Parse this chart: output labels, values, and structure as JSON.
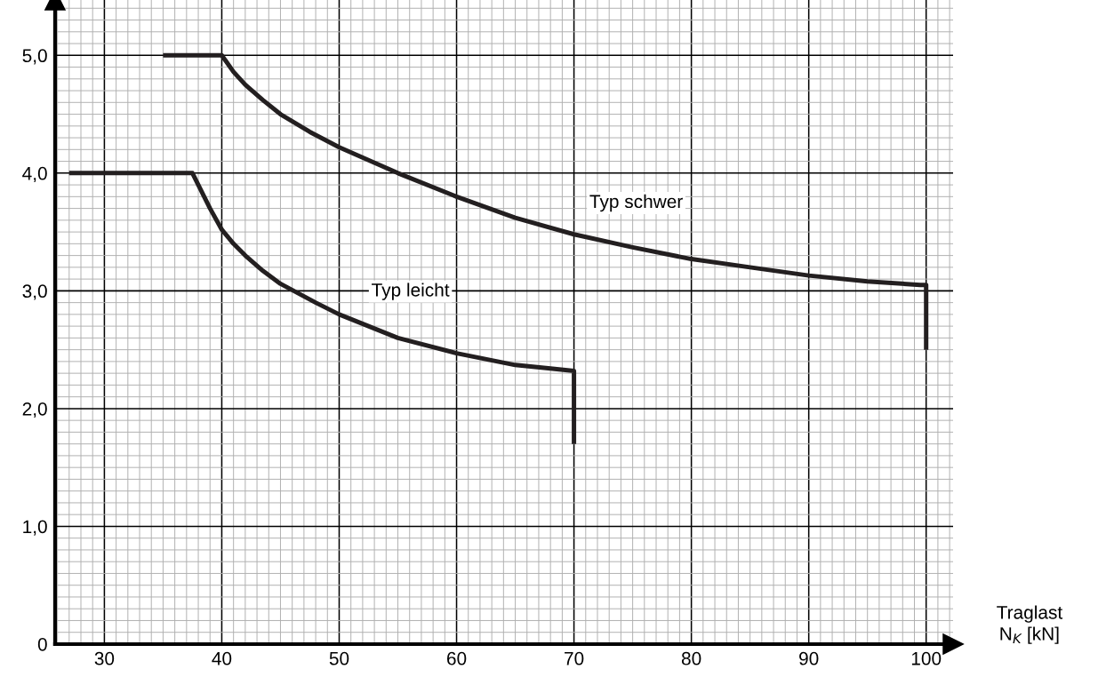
{
  "chart_data": {
    "type": "line",
    "xlabel": "Traglast\nN$_{K}$ [kN]",
    "series": [
      {
        "name": "Typ leicht",
        "color": "#231f20",
        "x": [
          27,
          37.5,
          38,
          38.5,
          39,
          40,
          41,
          42,
          43.5,
          45,
          48,
          50,
          55,
          60,
          65,
          68,
          70,
          70
        ],
        "values": [
          4.0,
          4.0,
          3.9,
          3.8,
          3.7,
          3.52,
          3.4,
          3.3,
          3.17,
          3.06,
          2.9,
          2.8,
          2.6,
          2.47,
          2.37,
          2.34,
          2.32,
          1.7
        ]
      },
      {
        "name": "Typ schwer",
        "color": "#231f20",
        "x": [
          35,
          40,
          41,
          42,
          43.5,
          45,
          47.5,
          50,
          55,
          60,
          65,
          70,
          75,
          80,
          85,
          90,
          95,
          99.5,
          100,
          100
        ],
        "values": [
          5.0,
          5.0,
          4.86,
          4.75,
          4.62,
          4.5,
          4.35,
          4.22,
          4.0,
          3.8,
          3.62,
          3.48,
          3.37,
          3.27,
          3.2,
          3.13,
          3.08,
          3.05,
          3.05,
          2.5
        ]
      }
    ],
    "xlim": [
      25.8,
      102.3
    ],
    "ylim": [
      0,
      5.47
    ],
    "xticks": [
      {
        "value": 26,
        "label": null
      },
      {
        "value": 27,
        "label": null
      },
      {
        "value": 28,
        "label": null
      },
      {
        "value": 29,
        "label": null
      },
      30,
      {
        "value": 31,
        "label": null
      },
      {
        "value": 32,
        "label": null
      },
      {
        "value": 33,
        "label": null
      },
      {
        "value": 34,
        "label": null
      },
      {
        "value": 35,
        "label": null
      },
      {
        "value": 36,
        "label": null
      },
      {
        "value": 37,
        "label": null
      },
      {
        "value": 38,
        "label": null
      },
      {
        "value": 39,
        "label": null
      },
      40,
      {
        "value": 41,
        "label": null
      },
      {
        "value": 42,
        "label": null
      },
      {
        "value": 43,
        "label": null
      },
      {
        "value": 44,
        "label": null
      },
      {
        "value": 45,
        "label": null
      },
      {
        "value": 46,
        "label": null
      },
      {
        "value": 47,
        "label": null
      },
      {
        "value": 48,
        "label": null
      },
      {
        "value": 49,
        "label": null
      },
      50,
      {
        "value": 51,
        "label": null
      },
      {
        "value": 52,
        "label": null
      },
      {
        "value": 53,
        "label": null
      },
      {
        "value": 54,
        "label": null
      },
      {
        "value": 55,
        "label": null
      },
      {
        "value": 56,
        "label": null
      },
      {
        "value": 57,
        "label": null
      },
      {
        "value": 58,
        "label": null
      },
      {
        "value": 59,
        "label": null
      },
      60,
      {
        "value": 61,
        "label": null
      },
      {
        "value": 62,
        "label": null
      },
      {
        "value": 63,
        "label": null
      },
      {
        "value": 64,
        "label": null
      },
      {
        "value": 65,
        "label": null
      },
      {
        "value": 66,
        "label": null
      },
      {
        "value": 67,
        "label": null
      },
      {
        "value": 68,
        "label": null
      },
      {
        "value": 69,
        "label": null
      },
      70,
      {
        "value": 71,
        "label": null
      },
      {
        "value": 72,
        "label": null
      },
      {
        "value": 73,
        "label": null
      },
      {
        "value": 74,
        "label": null
      },
      {
        "value": 75,
        "label": null
      },
      {
        "value": 76,
        "label": null
      },
      {
        "value": 77,
        "label": null
      },
      {
        "value": 78,
        "label": null
      },
      {
        "value": 79,
        "label": null
      },
      80,
      {
        "value": 81,
        "label": null
      },
      {
        "value": 82,
        "label": null
      },
      {
        "value": 83,
        "label": null
      },
      {
        "value": 84,
        "label": null
      },
      {
        "value": 85,
        "label": null
      },
      {
        "value": 86,
        "label": null
      },
      {
        "value": 87,
        "label": null
      },
      {
        "value": 88,
        "label": null
      },
      {
        "value": 89,
        "label": null
      },
      90,
      {
        "value": 91,
        "label": null
      },
      {
        "value": 92,
        "label": null
      },
      {
        "value": 93,
        "label": null
      },
      {
        "value": 94,
        "label": null
      },
      {
        "value": 95,
        "label": null
      },
      {
        "value": 96,
        "label": null
      },
      {
        "value": 97,
        "label": null
      },
      {
        "value": 98,
        "label": null
      },
      {
        "value": 99,
        "label": null
      },
      100,
      {
        "value": 101,
        "label": null
      },
      {
        "value": 102,
        "label": null
      }
    ],
    "yticks": [
      {
        "value": 0,
        "label": "0"
      },
      {
        "value": 0.1,
        "label": null
      },
      {
        "value": 0.2,
        "label": null
      },
      {
        "value": 0.3,
        "label": null
      },
      {
        "value": 0.4,
        "label": null
      },
      {
        "value": 0.5,
        "label": null
      },
      {
        "value": 0.6,
        "label": null
      },
      {
        "value": 0.7,
        "label": null
      },
      {
        "value": 0.8,
        "label": null
      },
      {
        "value": 0.9,
        "label": null
      },
      {
        "value": 1,
        "label": "1,0"
      },
      {
        "value": 1.1,
        "label": null
      },
      {
        "value": 1.2,
        "label": null
      },
      {
        "value": 1.3,
        "label": null
      },
      {
        "value": 1.4,
        "label": null
      },
      {
        "value": 1.5,
        "label": null
      },
      {
        "value": 1.6,
        "label": null
      },
      {
        "value": 1.7,
        "label": null
      },
      {
        "value": 1.8,
        "label": null
      },
      {
        "value": 1.9,
        "label": null
      },
      {
        "value": 2,
        "label": "2,0"
      },
      {
        "value": 2.1,
        "label": null
      },
      {
        "value": 2.2,
        "label": null
      },
      {
        "value": 2.3,
        "label": null
      },
      {
        "value": 2.4,
        "label": null
      },
      {
        "value": 2.5,
        "label": null
      },
      {
        "value": 2.6,
        "label": null
      },
      {
        "value": 2.7,
        "label": null
      },
      {
        "value": 2.8,
        "label": null
      },
      {
        "value": 2.9,
        "label": null
      },
      {
        "value": 3,
        "label": "3,0"
      },
      {
        "value": 3.1,
        "label": null
      },
      {
        "value": 3.2,
        "label": null
      },
      {
        "value": 3.3,
        "label": null
      },
      {
        "value": 3.4,
        "label": null
      },
      {
        "value": 3.5,
        "label": null
      },
      {
        "value": 3.6,
        "label": null
      },
      {
        "value": 3.7,
        "label": null
      },
      {
        "value": 3.8,
        "label": null
      },
      {
        "value": 3.9,
        "label": null
      },
      {
        "value": 4,
        "label": "4,0"
      },
      {
        "value": 4.1,
        "label": null
      },
      {
        "value": 4.2,
        "label": null
      },
      {
        "value": 4.3,
        "label": null
      },
      {
        "value": 4.4,
        "label": null
      },
      {
        "value": 4.5,
        "label": null
      },
      {
        "value": 4.6,
        "label": null
      },
      {
        "value": 4.7,
        "label": null
      },
      {
        "value": 4.8,
        "label": null
      },
      {
        "value": 4.9,
        "label": null
      },
      {
        "value": 5,
        "label": "5,0"
      },
      {
        "value": 5.1,
        "label": null
      },
      {
        "value": 5.2,
        "label": null
      },
      {
        "value": 5.3,
        "label": null
      },
      {
        "value": 5.4,
        "label": null
      }
    ],
    "grid": true
  }
}
